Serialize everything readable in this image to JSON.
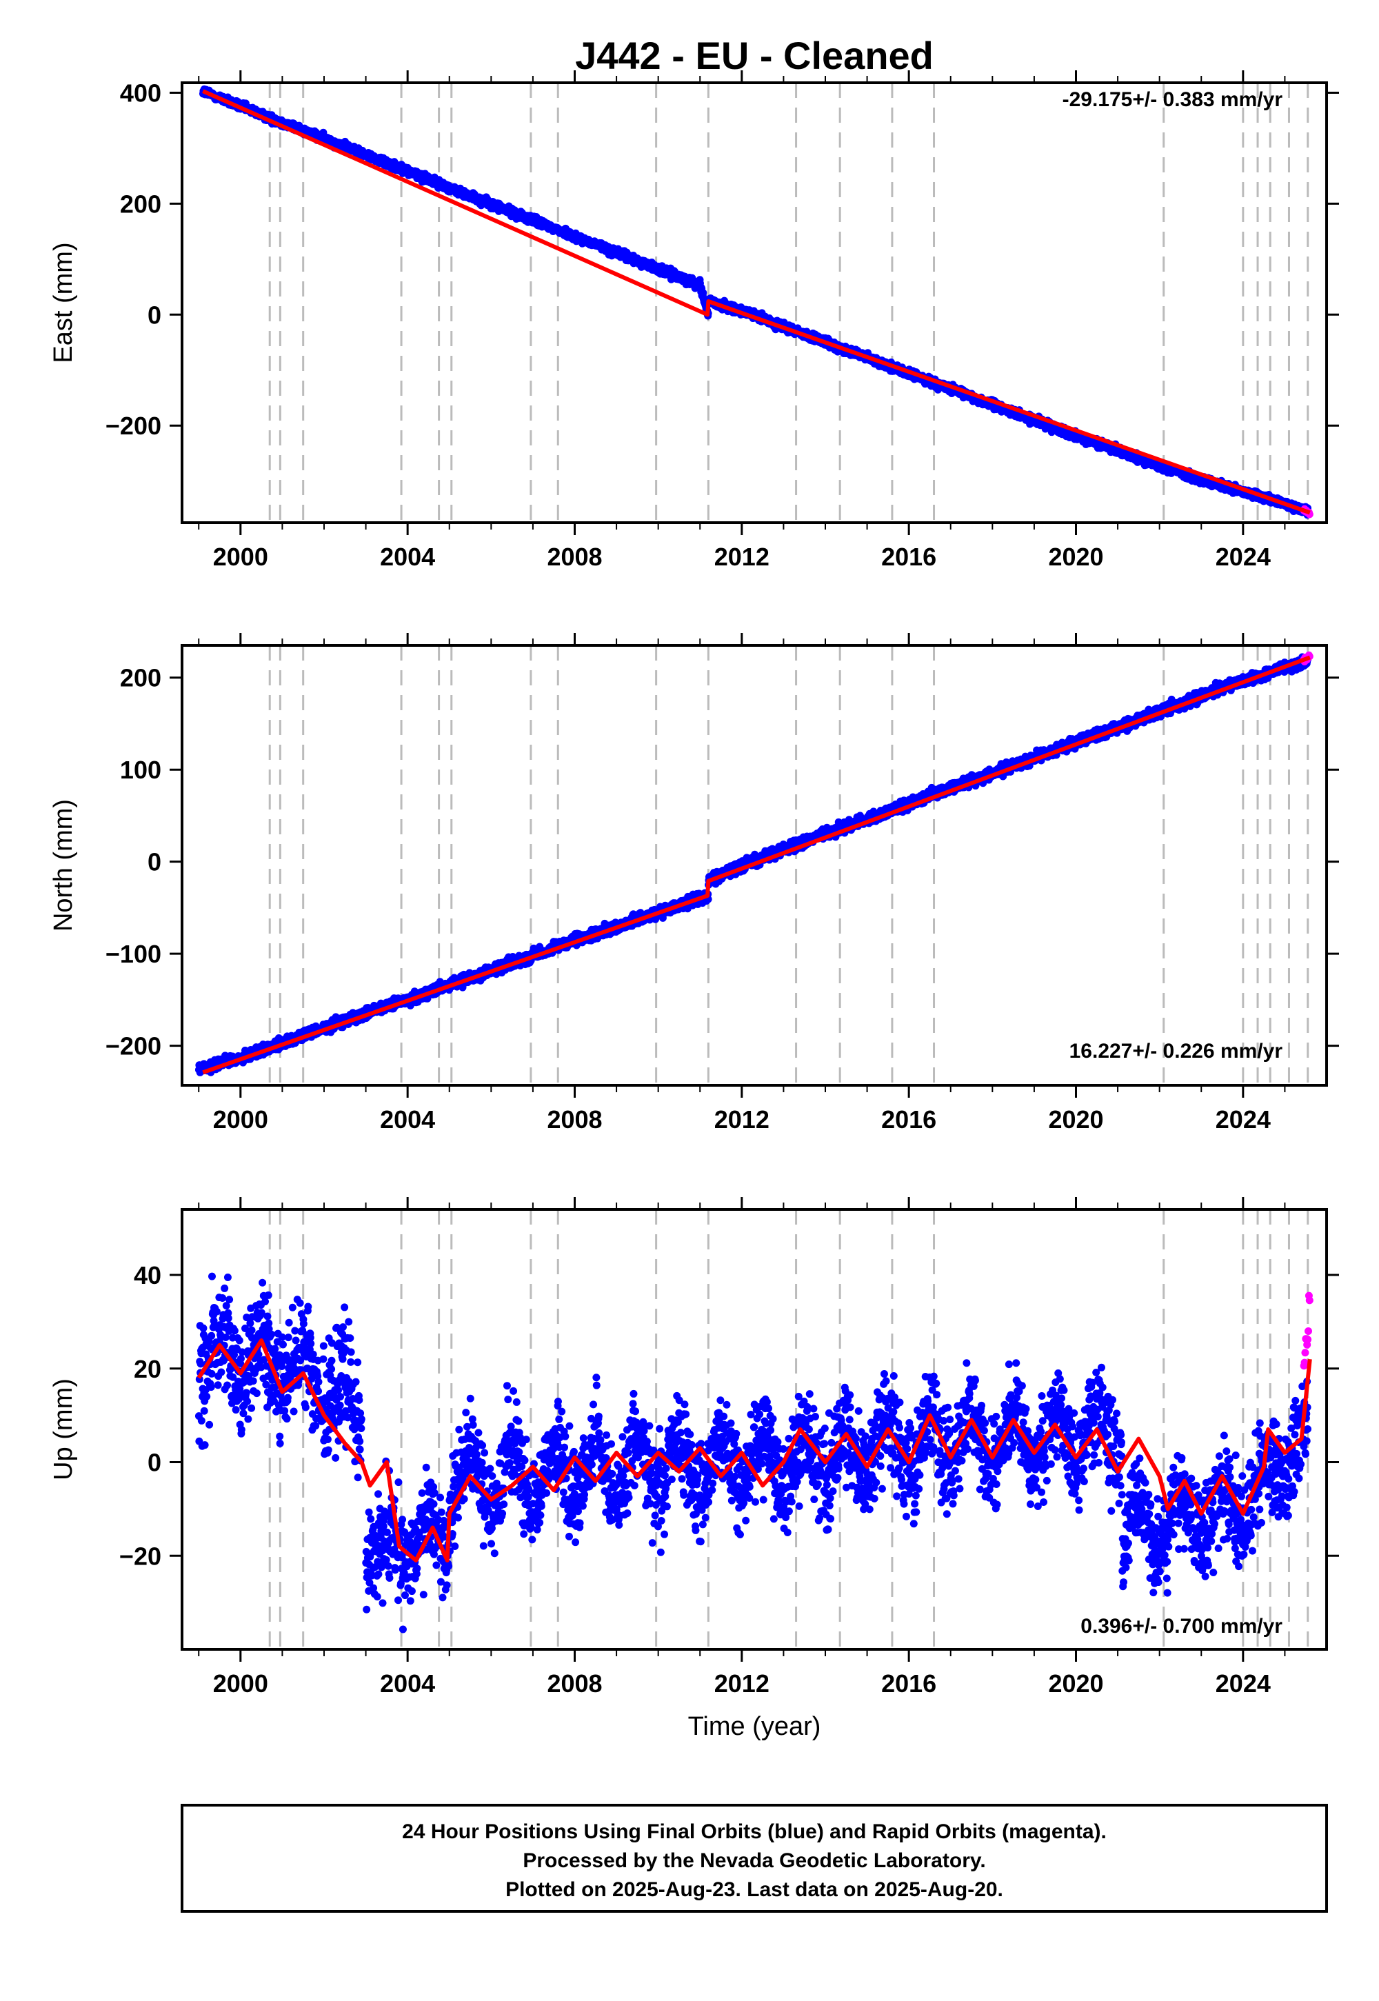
{
  "figure": {
    "title": "J442  - EU - Cleaned",
    "footer": [
      "24 Hour Positions Using Final Orbits (blue) and Rapid Orbits (magenta).",
      "Processed by the Nevada Geodetic Laboratory.",
      "Plotted on 2025-Aug-23. Last data on 2025-Aug-20."
    ],
    "colors": {
      "final_orbits": "#0000ff",
      "rapid_orbits": "#ff00ff",
      "model": "#ff0000",
      "equipment_changes": "#bbbbbb",
      "frame": "#000000"
    }
  },
  "chart_data": [
    {
      "type": "scatter",
      "ylabel": "East (mm)",
      "xlabel": "",
      "rate": "-29.175+/- 0.383 mm/yr",
      "xlim": [
        1998.6,
        2026.0
      ],
      "ylim": [
        -375,
        418
      ],
      "xticks": [
        2000,
        2004,
        2008,
        2012,
        2016,
        2020,
        2024
      ],
      "yticks": [
        400,
        200,
        0,
        -200
      ],
      "ytick_labels": [
        "400",
        "200",
        "0",
        "−200"
      ],
      "series": [
        {
          "name": "Final Orbits",
          "x": [
            1999.1,
            2000.0,
            2001.0,
            2002.0,
            2003.0,
            2004.0,
            2005.0,
            2006.0,
            2007.0,
            2008.0,
            2009.0,
            2010.0,
            2011.0,
            2011.2
          ],
          "y": [
            403,
            375,
            346,
            317,
            288,
            259,
            228,
            199,
            170,
            141,
            112,
            82,
            54,
            0
          ],
          "noise": 5
        },
        {
          "name": "Final Orbits",
          "x": [
            2011.2,
            2012.0,
            2013.0,
            2014.0,
            2015.0,
            2016.0,
            2017.0,
            2018.0,
            2019.0,
            2020.0,
            2021.0,
            2022.0,
            2023.0,
            2024.0,
            2025.0,
            2025.55
          ],
          "y": [
            24,
            7,
            -22,
            -50,
            -78,
            -106,
            -134,
            -162,
            -190,
            -218,
            -245,
            -272,
            -298,
            -320,
            -341,
            -355
          ],
          "noise": 5
        },
        {
          "name": "Rapid Orbits",
          "x": [
            2025.45,
            2025.5,
            2025.55,
            2025.6
          ],
          "y": [
            -352,
            -354,
            -356,
            -358
          ],
          "noise": 2
        }
      ],
      "model": [
        [
          1999.1,
          403
        ],
        [
          2011.18,
          0
        ],
        [
          2011.2,
          24
        ],
        [
          2025.6,
          -357
        ]
      ]
    },
    {
      "type": "scatter",
      "ylabel": "North (mm)",
      "xlabel": "",
      "rate": "16.227+/- 0.226 mm/yr",
      "xlim": [
        1998.6,
        2026.0
      ],
      "ylim": [
        -243,
        235
      ],
      "xticks": [
        2000,
        2004,
        2008,
        2012,
        2016,
        2020,
        2024
      ],
      "yticks": [
        200,
        100,
        0,
        -100,
        -200
      ],
      "ytick_labels": [
        "200",
        "100",
        "0",
        "−100",
        "−200"
      ],
      "series": [
        {
          "name": "Final Orbits",
          "x": [
            1999.0,
            2000.0,
            2001.0,
            2002.0,
            2003.0,
            2004.0,
            2005.0,
            2006.0,
            2007.0,
            2008.0,
            2009.0,
            2010.0,
            2011.0,
            2011.2
          ],
          "y": [
            -225,
            -213,
            -197,
            -181,
            -165,
            -150,
            -134,
            -118,
            -102,
            -86,
            -71,
            -55,
            -40,
            -37
          ],
          "noise": 4
        },
        {
          "name": "Final Orbits",
          "x": [
            2011.2,
            2012.0,
            2013.0,
            2014.0,
            2015.0,
            2016.0,
            2017.0,
            2018.0,
            2019.0,
            2020.0,
            2021.0,
            2022.0,
            2023.0,
            2024.0,
            2025.0,
            2025.55
          ],
          "y": [
            -21,
            -4,
            13,
            30,
            46,
            63,
            80,
            96,
            113,
            130,
            146,
            163,
            180,
            197,
            210,
            218
          ],
          "noise": 4
        },
        {
          "name": "Rapid Orbits",
          "x": [
            2025.45,
            2025.5,
            2025.55,
            2025.6
          ],
          "y": [
            218,
            220,
            222,
            224
          ],
          "noise": 2
        }
      ],
      "model": [
        [
          1999.1,
          -229
        ],
        [
          2011.18,
          -37
        ],
        [
          2011.2,
          -21
        ],
        [
          2025.6,
          222
        ]
      ]
    },
    {
      "type": "scatter",
      "ylabel": "Up (mm)",
      "xlabel": "Time (year)",
      "rate": "0.396+/- 0.700 mm/yr",
      "xlim": [
        1998.6,
        2026.0
      ],
      "ylim": [
        -40,
        54
      ],
      "xticks": [
        2000,
        2004,
        2008,
        2012,
        2016,
        2020,
        2024
      ],
      "yticks": [
        40,
        20,
        0,
        -20
      ],
      "ytick_labels": [
        "40",
        "20",
        "0",
        "−20"
      ],
      "series": [
        {
          "name": "Final Orbits",
          "x": [
            1999.0,
            2000.0,
            2001.0,
            2002.0,
            2002.9
          ],
          "y": [
            22,
            22,
            21,
            16,
            12
          ],
          "noise": 9,
          "season": 5
        },
        {
          "name": "Final Orbits",
          "x": [
            2003.0,
            2004.0,
            2005.0
          ],
          "y": [
            -18,
            -18,
            -16
          ],
          "noise": 7,
          "season": 4
        },
        {
          "name": "Final Orbits",
          "x": [
            2005.0,
            2006.0,
            2008.0,
            2010.0,
            2012.0,
            2014.0,
            2016.0,
            2018.0,
            2020.0,
            2021.1
          ],
          "y": [
            -4,
            -3,
            -2,
            -1,
            0,
            1,
            4,
            5,
            6,
            7
          ],
          "noise": 7,
          "season": 6
        },
        {
          "name": "Final Orbits",
          "x": [
            2021.1,
            2022.0,
            2023.0,
            2024.0,
            2025.0,
            2025.55
          ],
          "y": [
            -14,
            -13,
            -12,
            -9,
            1,
            3
          ],
          "noise": 7,
          "season": 5
        },
        {
          "name": "Rapid Orbits",
          "x": [
            2025.45,
            2025.5,
            2025.55,
            2025.6
          ],
          "y": [
            20,
            25,
            30,
            35
          ],
          "noise": 3,
          "season": 0
        }
      ],
      "model": [
        [
          1999.0,
          18
        ],
        [
          1999.5,
          25
        ],
        [
          2000.0,
          19
        ],
        [
          2000.5,
          26
        ],
        [
          2001.0,
          15
        ],
        [
          2001.5,
          19
        ],
        [
          2002.0,
          10
        ],
        [
          2002.5,
          4
        ],
        [
          2002.9,
          0
        ],
        [
          2003.1,
          -5
        ],
        [
          2003.5,
          0
        ],
        [
          2003.8,
          -18
        ],
        [
          2004.2,
          -21
        ],
        [
          2004.6,
          -14
        ],
        [
          2004.95,
          -21
        ],
        [
          2005.0,
          -11
        ],
        [
          2005.5,
          -3
        ],
        [
          2006.0,
          -8
        ],
        [
          2006.5,
          -5
        ],
        [
          2007.0,
          -1
        ],
        [
          2007.5,
          -6
        ],
        [
          2008.0,
          1
        ],
        [
          2008.5,
          -4
        ],
        [
          2009.0,
          2
        ],
        [
          2009.5,
          -3
        ],
        [
          2010.0,
          2
        ],
        [
          2010.5,
          -2
        ],
        [
          2011.0,
          3
        ],
        [
          2011.5,
          -3
        ],
        [
          2012.0,
          2
        ],
        [
          2012.5,
          -5
        ],
        [
          2013.0,
          0
        ],
        [
          2013.4,
          7
        ],
        [
          2014.0,
          0
        ],
        [
          2014.5,
          6
        ],
        [
          2015.0,
          -1
        ],
        [
          2015.5,
          7
        ],
        [
          2016.0,
          0
        ],
        [
          2016.5,
          10
        ],
        [
          2017.0,
          1
        ],
        [
          2017.5,
          9
        ],
        [
          2018.0,
          1
        ],
        [
          2018.5,
          9
        ],
        [
          2019.0,
          2
        ],
        [
          2019.5,
          8
        ],
        [
          2020.0,
          1
        ],
        [
          2020.5,
          7
        ],
        [
          2021.0,
          -2
        ],
        [
          2021.5,
          5
        ],
        [
          2022.0,
          -3
        ],
        [
          2022.2,
          -10
        ],
        [
          2022.6,
          -4
        ],
        [
          2023.0,
          -11
        ],
        [
          2023.5,
          -3
        ],
        [
          2024.0,
          -11
        ],
        [
          2024.5,
          -1
        ],
        [
          2024.6,
          7
        ],
        [
          2025.0,
          2
        ],
        [
          2025.4,
          5
        ],
        [
          2025.6,
          22
        ]
      ]
    }
  ],
  "equipment_changes": [
    2000.7,
    2000.95,
    2001.5,
    2003.85,
    2004.75,
    2005.05,
    2006.95,
    2007.6,
    2009.95,
    2011.2,
    2013.3,
    2014.35,
    2015.6,
    2016.6,
    2022.1,
    2024.0,
    2024.35,
    2024.65,
    2025.1,
    2025.55
  ]
}
